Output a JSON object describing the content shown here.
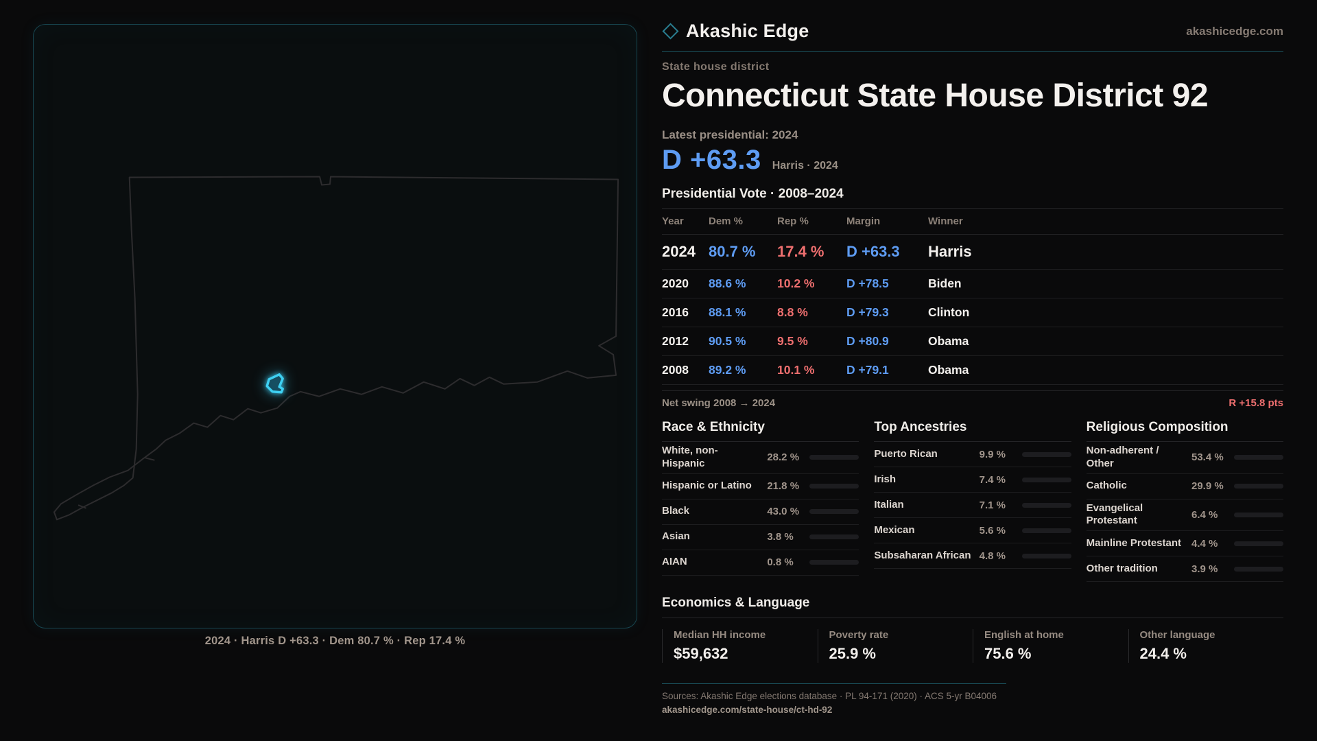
{
  "brand": {
    "name": "Akashic Edge",
    "site": "akashicedge.com",
    "accent_teal": "#1b5561",
    "dem_blue": "#5e9cf3",
    "rep_red": "#ee6f6f"
  },
  "page": {
    "kicker": "State house district",
    "title": "Connecticut State House District 92",
    "latest_label": "Latest presidential: 2024",
    "headline_margin": "D +63.3",
    "headline_context": "Harris · 2024"
  },
  "map": {
    "caption": "2024 · Harris D +63.3 · Dem 80.7 % · Rep 17.4 %",
    "highlight_color": "#3ed0f2"
  },
  "vote_table": {
    "title": "Presidential Vote · 2008–2024",
    "columns": {
      "year": "Year",
      "dem": "Dem %",
      "rep": "Rep %",
      "margin": "Margin",
      "winner": "Winner"
    },
    "rows": [
      {
        "year": "2024",
        "dem": "80.7 %",
        "rep": "17.4 %",
        "margin": "D +63.3",
        "winner": "Harris"
      },
      {
        "year": "2020",
        "dem": "88.6 %",
        "rep": "10.2 %",
        "margin": "D +78.5",
        "winner": "Biden"
      },
      {
        "year": "2016",
        "dem": "88.1 %",
        "rep": "8.8 %",
        "margin": "D +79.3",
        "winner": "Clinton"
      },
      {
        "year": "2012",
        "dem": "90.5 %",
        "rep": "9.5 %",
        "margin": "D +80.9",
        "winner": "Obama"
      },
      {
        "year": "2008",
        "dem": "89.2 %",
        "rep": "10.1 %",
        "margin": "D +79.1",
        "winner": "Obama"
      }
    ],
    "net_swing_label": "Net swing 2008 → 2024",
    "net_swing_value": "R +15.8 pts"
  },
  "demographics": [
    {
      "title": "Race & Ethnicity",
      "rows": [
        {
          "label": "White, non-Hispanic",
          "value": "28.2 %",
          "pct": 28.2,
          "color": "#8ba1c2"
        },
        {
          "label": "Hispanic or Latino",
          "value": "21.8 %",
          "pct": 21.8,
          "color": "#e1992f"
        },
        {
          "label": "Black",
          "value": "43.0 %",
          "pct": 43.0,
          "color": "#9b82ea"
        },
        {
          "label": "Asian",
          "value": "3.8 %",
          "pct": 3.8,
          "color": "#27a876"
        },
        {
          "label": "AIAN",
          "value": "0.8 %",
          "pct": 0.8,
          "color": "#b06a28"
        }
      ]
    },
    {
      "title": "Top Ancestries",
      "rows": [
        {
          "label": "Puerto Rican",
          "value": "9.9 %",
          "pct": 9.9,
          "color": "#e1992f"
        },
        {
          "label": "Irish",
          "value": "7.4 %",
          "pct": 7.4,
          "color": "#8ba1c2"
        },
        {
          "label": "Italian",
          "value": "7.1 %",
          "pct": 7.1,
          "color": "#8ba1c2"
        },
        {
          "label": "Mexican",
          "value": "5.6 %",
          "pct": 5.6,
          "color": "#e1992f"
        },
        {
          "label": "Subsaharan African",
          "value": "4.8 %",
          "pct": 4.8,
          "color": "#8d78e8"
        }
      ]
    },
    {
      "title": "Religious Composition",
      "rows": [
        {
          "label": "Non-adherent / Other",
          "value": "53.4 %",
          "pct": 53.4,
          "color": "#8394ab"
        },
        {
          "label": "Catholic",
          "value": "29.9 %",
          "pct": 29.9,
          "color": "#e3b52c"
        },
        {
          "label": "Evangelical Protestant",
          "value": "6.4 %",
          "pct": 6.4,
          "color": "#e66a6a"
        },
        {
          "label": "Mainline Protestant",
          "value": "4.4 %",
          "pct": 4.4,
          "color": "#4a86e8"
        },
        {
          "label": "Other tradition",
          "value": "3.9 %",
          "pct": 3.9,
          "color": "#8d9096"
        }
      ]
    }
  ],
  "economics": {
    "title": "Economics & Language",
    "stats": [
      {
        "label": "Median HH income",
        "value": "$59,632"
      },
      {
        "label": "Poverty rate",
        "value": "25.9 %"
      },
      {
        "label": "English at home",
        "value": "75.6 %"
      },
      {
        "label": "Other language",
        "value": "24.4 %"
      }
    ]
  },
  "footer": {
    "sources": "Sources: Akashic Edge elections database · PL 94-171 (2020) · ACS 5-yr B04006",
    "permalink": "akashicedge.com/state-house/ct-hd-92"
  }
}
